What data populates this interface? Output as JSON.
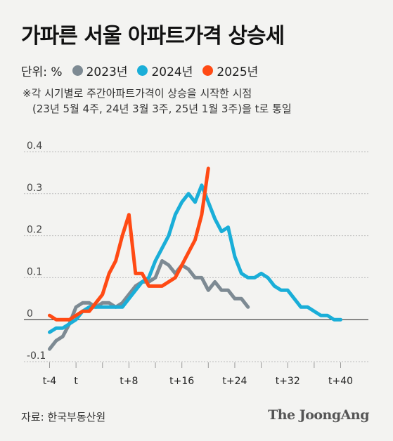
{
  "title": "가파른 서울 아파트가격 상승세",
  "legend": {
    "unit": "단위: %",
    "items": [
      {
        "label": "2023년",
        "color": "#7d8a93"
      },
      {
        "label": "2024년",
        "color": "#1aaed8"
      },
      {
        "label": "2025년",
        "color": "#ff4a14"
      }
    ]
  },
  "note": {
    "line1": "※각 시기별로 주간아파트가격이 상승을 시작한 시점",
    "line2": "(23년 5월 4주, 24년 3월 3주, 25년 1월 3주)을 t로 통일"
  },
  "source": "자료: 한국부동산원",
  "brand": "The JoongAng",
  "chart_data": {
    "type": "line",
    "title": "가파른 서울 아파트가격 상승세",
    "ylabel": "단위: %",
    "xlabel": "",
    "ylim": [
      -0.1,
      0.4
    ],
    "y_ticks": [
      "-0.1",
      "0",
      "0.1",
      "0.2",
      "0.3",
      "0.4"
    ],
    "x_ticks": [
      {
        "week": -4,
        "label": "t-4"
      },
      {
        "week": 0,
        "label": "t"
      },
      {
        "week": 8,
        "label": "t+8"
      },
      {
        "week": 16,
        "label": "t+16"
      },
      {
        "week": 24,
        "label": "t+24"
      },
      {
        "week": 32,
        "label": "t+32"
      },
      {
        "week": 40,
        "label": "t+40"
      }
    ],
    "grid": true,
    "legend_position": "top",
    "series": [
      {
        "name": "2023년",
        "color": "#7d8a93",
        "x": [
          -4,
          -3,
          -2,
          -1,
          0,
          1,
          2,
          3,
          4,
          5,
          6,
          7,
          8,
          9,
          10,
          11,
          12,
          13,
          14,
          15,
          16,
          17,
          18,
          19,
          20,
          21,
          22,
          23,
          24,
          25,
          26
        ],
        "y": [
          -0.07,
          -0.05,
          -0.04,
          -0.01,
          0.03,
          0.04,
          0.04,
          0.03,
          0.04,
          0.04,
          0.03,
          0.04,
          0.06,
          0.08,
          0.09,
          0.09,
          0.1,
          0.14,
          0.13,
          0.11,
          0.13,
          0.12,
          0.1,
          0.1,
          0.07,
          0.09,
          0.07,
          0.07,
          0.05,
          0.05,
          0.03
        ]
      },
      {
        "name": "2024년",
        "color": "#1aaed8",
        "x": [
          -4,
          -3,
          -2,
          -1,
          0,
          1,
          2,
          3,
          4,
          5,
          6,
          7,
          8,
          9,
          10,
          11,
          12,
          13,
          14,
          15,
          16,
          17,
          18,
          19,
          20,
          21,
          22,
          23,
          24,
          25,
          26,
          27,
          28,
          29,
          30,
          31,
          32,
          33,
          34,
          35,
          36,
          37,
          38,
          39,
          40
        ],
        "y": [
          -0.03,
          -0.02,
          -0.02,
          -0.01,
          0.0,
          0.02,
          0.03,
          0.03,
          0.03,
          0.03,
          0.03,
          0.03,
          0.05,
          0.07,
          0.09,
          0.1,
          0.14,
          0.17,
          0.2,
          0.25,
          0.28,
          0.3,
          0.28,
          0.32,
          0.28,
          0.24,
          0.21,
          0.22,
          0.15,
          0.11,
          0.1,
          0.1,
          0.11,
          0.1,
          0.08,
          0.07,
          0.07,
          0.05,
          0.03,
          0.03,
          0.02,
          0.01,
          0.01,
          0.0,
          0.0
        ]
      },
      {
        "name": "2025년",
        "color": "#ff4a14",
        "x": [
          -4,
          -3,
          -2,
          -1,
          0,
          1,
          2,
          3,
          4,
          5,
          6,
          7,
          8,
          9,
          10,
          11,
          12,
          13,
          14,
          15,
          16,
          17,
          18,
          19,
          20
        ],
        "y": [
          0.01,
          0.0,
          0.0,
          0.0,
          0.01,
          0.02,
          0.02,
          0.04,
          0.06,
          0.11,
          0.14,
          0.2,
          0.25,
          0.11,
          0.11,
          0.08,
          0.08,
          0.08,
          0.09,
          0.1,
          0.13,
          0.16,
          0.19,
          0.25,
          0.36
        ]
      }
    ]
  }
}
